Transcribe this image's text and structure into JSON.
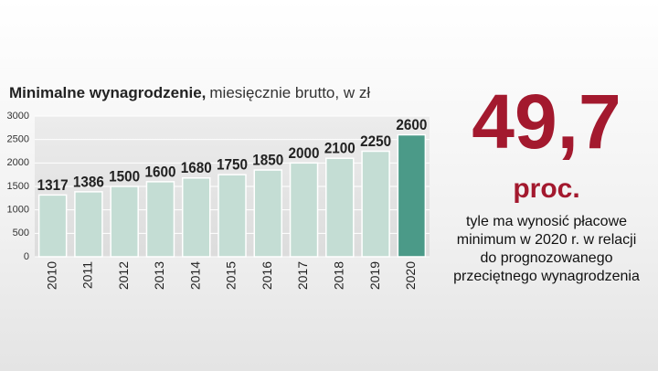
{
  "chart_data": {
    "type": "bar",
    "title": "Minimalne wynagrodzenie,",
    "subtitle": "miesięcznie brutto, w zł",
    "categories": [
      "2010",
      "2011",
      "2012",
      "2013",
      "2014",
      "2015",
      "2016",
      "2017",
      "2018",
      "2019",
      "2020"
    ],
    "values": [
      1317,
      1386,
      1500,
      1600,
      1680,
      1750,
      1850,
      2000,
      2100,
      2250,
      2600
    ],
    "colors": [
      "#c4ddd4",
      "#c4ddd4",
      "#c4ddd4",
      "#c4ddd4",
      "#c4ddd4",
      "#c4ddd4",
      "#c4ddd4",
      "#c4ddd4",
      "#c4ddd4",
      "#c4ddd4",
      "#4b9a88"
    ],
    "ylim": [
      0,
      3000
    ],
    "yticks": [
      0,
      500,
      1000,
      1500,
      2000,
      2500,
      3000
    ],
    "grid": true
  },
  "highlight": {
    "number": "49,7",
    "unit": "proc.",
    "description": [
      "tyle ma wynosić płacowe",
      "minimum w 2020 r. w relacji",
      "do prognozowanego",
      "przeciętnego wynagrodzenia"
    ]
  }
}
